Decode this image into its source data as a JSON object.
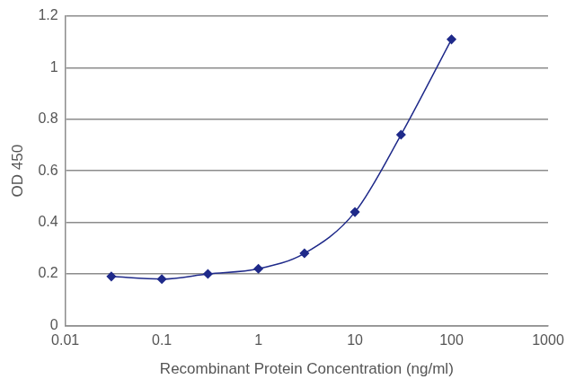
{
  "chart_data": {
    "type": "line",
    "x_label": "Recombinant Protein Concentration (ng/ml)",
    "y_label": "OD 450",
    "x": [
      0.03,
      0.1,
      0.3,
      1,
      3,
      10,
      30,
      100
    ],
    "values": [
      0.19,
      0.18,
      0.2,
      0.22,
      0.28,
      0.44,
      0.74,
      1.11
    ],
    "color": "#1f2a8a",
    "marker": "diamond",
    "line_style": "solid",
    "log": "x",
    "xlim": [
      0.01,
      1000
    ],
    "xticks": [
      0.01,
      0.1,
      1,
      10,
      100,
      1000
    ],
    "ylim": [
      0,
      1.2
    ],
    "yticks": [
      0,
      0.2,
      0.4,
      0.6,
      0.8,
      1,
      1.2
    ],
    "grid": "y"
  }
}
